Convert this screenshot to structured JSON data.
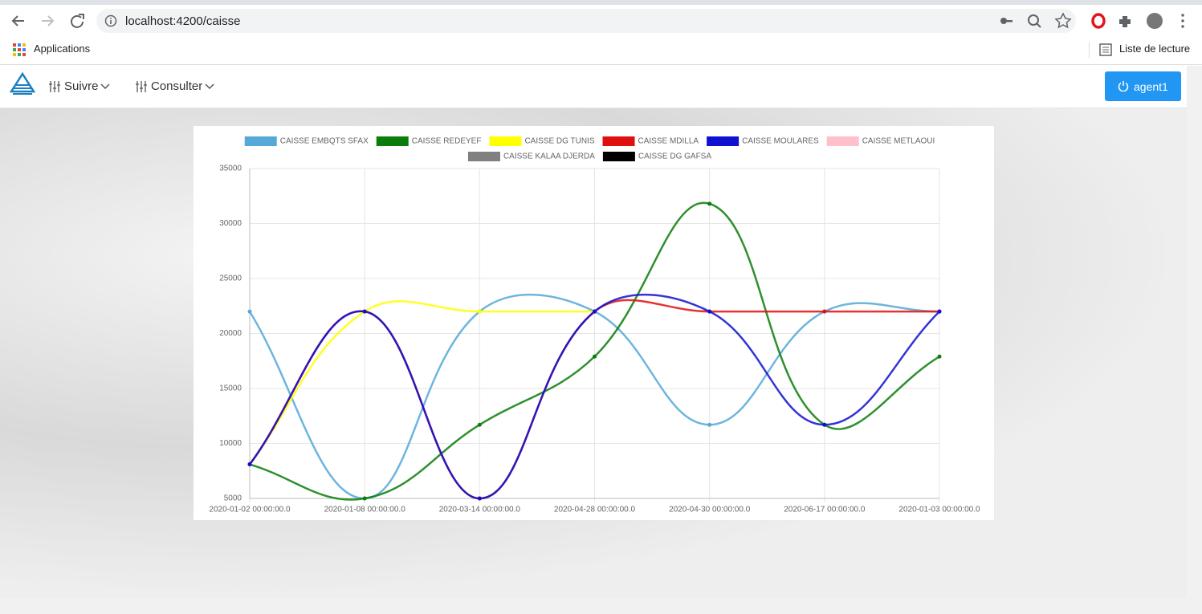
{
  "browser": {
    "url": "localhost:4200/caisse",
    "bookmarks": [
      "Applications"
    ],
    "reading_list": "Liste de lecture"
  },
  "nav": {
    "menus": [
      "Suivre",
      "Consulter"
    ],
    "user": "agent1"
  },
  "chart_data": {
    "type": "line",
    "categories": [
      "2020-01-02 00:00:00.0",
      "2020-01-08 00:00:00.0",
      "2020-03-14 00:00:00.0",
      "2020-04-28 00:00:00.0",
      "2020-04-30 00:00:00.0",
      "2020-06-17 00:00:00.0",
      "2020-01-03 00:00:00.0"
    ],
    "series": [
      {
        "name": "CAISSE EMBQTS SFAX",
        "color": "#55a8d8",
        "values": [
          22000,
          5000,
          22000,
          22000,
          11700,
          22000,
          22000
        ]
      },
      {
        "name": "CAISSE REDEYEF",
        "color": "#0b7d0b",
        "values": [
          8100,
          5000,
          11700,
          17900,
          31800,
          11700,
          17900
        ]
      },
      {
        "name": "CAISSE DG TUNIS",
        "color": "#ffff00",
        "values": [
          8100,
          22000,
          22000,
          22000,
          null,
          null,
          null
        ]
      },
      {
        "name": "CAISSE MDILLA",
        "color": "#e01010",
        "values": [
          8100,
          22000,
          5000,
          22000,
          22000,
          22000,
          22000
        ]
      },
      {
        "name": "CAISSE MOULARES",
        "color": "#1010d0",
        "values": [
          8100,
          22000,
          5000,
          22000,
          22000,
          11700,
          22000
        ]
      },
      {
        "name": "CAISSE METLAOUI",
        "color": "#ffc0cb",
        "values": [
          null,
          null,
          null,
          null,
          null,
          null,
          null
        ]
      },
      {
        "name": "CAISSE KALAA DJERDA",
        "color": "#808080",
        "values": [
          null,
          null,
          null,
          null,
          null,
          null,
          null
        ]
      },
      {
        "name": "CAISSE DG GAFSA",
        "color": "#000000",
        "values": [
          null,
          null,
          null,
          null,
          null,
          null,
          null
        ]
      }
    ],
    "ylim": [
      5000,
      35000
    ],
    "yticks": [
      5000,
      10000,
      15000,
      20000,
      25000,
      30000,
      35000
    ],
    "grid": true,
    "legend": "top"
  }
}
